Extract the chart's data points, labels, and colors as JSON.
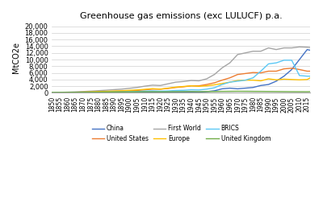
{
  "title": "Greenhouse gas emissions (exc LULUCF) p.a.",
  "ylabel": "MtCO2e",
  "years": [
    1850,
    1855,
    1860,
    1865,
    1870,
    1875,
    1880,
    1885,
    1890,
    1895,
    1900,
    1905,
    1910,
    1915,
    1920,
    1925,
    1930,
    1935,
    1940,
    1945,
    1950,
    1955,
    1960,
    1965,
    1970,
    1975,
    1980,
    1985,
    1990,
    1995,
    2000,
    2005,
    2010,
    2015,
    2017
  ],
  "China": [
    30,
    35,
    38,
    42,
    48,
    55,
    65,
    75,
    90,
    100,
    120,
    140,
    180,
    180,
    160,
    175,
    200,
    210,
    250,
    200,
    350,
    600,
    1200,
    1400,
    1200,
    1400,
    1600,
    2200,
    2500,
    3500,
    5000,
    7000,
    10000,
    13000,
    12800
  ],
  "United_States": [
    30,
    40,
    60,
    90,
    150,
    210,
    280,
    340,
    430,
    500,
    600,
    700,
    900,
    1100,
    1100,
    1300,
    1600,
    1800,
    2100,
    2100,
    2500,
    3000,
    3800,
    4500,
    5500,
    5800,
    6100,
    6000,
    6500,
    6500,
    7200,
    7400,
    7000,
    6500,
    6500
  ],
  "First_World": [
    100,
    140,
    200,
    280,
    380,
    500,
    640,
    780,
    950,
    1100,
    1350,
    1600,
    2000,
    2300,
    2200,
    2700,
    3200,
    3400,
    3700,
    3600,
    4200,
    5500,
    7500,
    9000,
    11500,
    12000,
    12500,
    12500,
    13500,
    13000,
    13500,
    13500,
    13800,
    13700,
    13600
  ],
  "Europe": [
    60,
    80,
    110,
    160,
    220,
    290,
    370,
    450,
    540,
    620,
    750,
    870,
    1050,
    1250,
    1100,
    1400,
    1700,
    1900,
    2100,
    1950,
    2100,
    2400,
    2800,
    3200,
    3700,
    3800,
    3800,
    3600,
    4200,
    3900,
    4100,
    4000,
    3900,
    4000,
    4500
  ],
  "BRICS": [
    60,
    70,
    85,
    100,
    120,
    140,
    165,
    200,
    240,
    275,
    330,
    400,
    520,
    580,
    500,
    560,
    700,
    750,
    900,
    850,
    1100,
    1500,
    2500,
    3200,
    3500,
    3800,
    4500,
    6500,
    8700,
    9000,
    9800,
    9800,
    5200,
    5000,
    5000
  ],
  "United_Kingdom": [
    100,
    120,
    140,
    160,
    180,
    200,
    220,
    240,
    260,
    270,
    290,
    310,
    330,
    340,
    310,
    330,
    350,
    360,
    380,
    350,
    380,
    390,
    430,
    440,
    470,
    450,
    430,
    420,
    400,
    380,
    360,
    340,
    330,
    320,
    350
  ],
  "colors": {
    "China": "#4472C4",
    "United_States": "#ED7D31",
    "First_World": "#A5A5A5",
    "Europe": "#FFC000",
    "BRICS": "#5BC8F5",
    "United_Kingdom": "#70AD47"
  },
  "ylim": [
    0,
    21000
  ],
  "yticks": [
    0,
    2000,
    4000,
    6000,
    8000,
    10000,
    12000,
    14000,
    16000,
    18000,
    20000
  ]
}
